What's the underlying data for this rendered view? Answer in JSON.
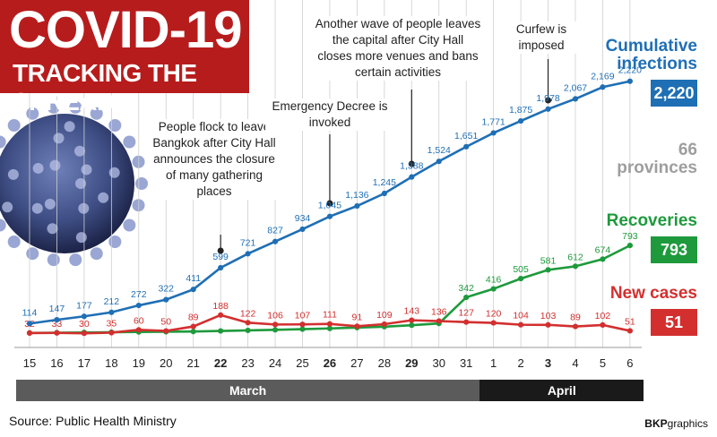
{
  "title": {
    "main": "COVID-19",
    "sub": "TRACKING THE SPREAD"
  },
  "chart_data": {
    "type": "line",
    "categories": [
      "15",
      "16",
      "17",
      "18",
      "19",
      "20",
      "21",
      "22",
      "23",
      "24",
      "25",
      "26",
      "27",
      "28",
      "29",
      "30",
      "31",
      "1",
      "2",
      "3",
      "4",
      "5",
      "6"
    ],
    "bold_categories": [
      "22",
      "26",
      "29",
      "3"
    ],
    "months": [
      {
        "name": "March",
        "first": "15",
        "last": "31",
        "color": "#5b5b5b"
      },
      {
        "name": "April",
        "first": "1",
        "last": "6",
        "color": "#1a1a1a"
      }
    ],
    "series": [
      {
        "name": "Cumulative infections",
        "color": "#1f6fb5",
        "values": [
          114,
          147,
          177,
          212,
          272,
          322,
          411,
          599,
          721,
          827,
          934,
          1045,
          1136,
          1245,
          1388,
          1524,
          1651,
          1771,
          1875,
          1978,
          2067,
          2169,
          2220
        ]
      },
      {
        "name": "Recoveries",
        "color": "#1e9a3c",
        "values": [
          33,
          35,
          37,
          39,
          41,
          43,
          45,
          50,
          55,
          60,
          66,
          72,
          79,
          87,
          100,
          115,
          342,
          416,
          505,
          581,
          612,
          674,
          793
        ]
      },
      {
        "name": "New cases",
        "color": "#d32f2f",
        "values": [
          32,
          33,
          30,
          35,
          60,
          50,
          89,
          188,
          122,
          106,
          107,
          111,
          91,
          109,
          143,
          136,
          127,
          120,
          104,
          103,
          89,
          102,
          51
        ]
      }
    ],
    "labeled": {
      "Recoveries": [
        "342",
        "416",
        "505",
        "581",
        "612",
        "674",
        "793"
      ]
    },
    "ylim": [
      0,
      2300
    ],
    "grid": "vertical"
  },
  "annotations": [
    {
      "text": "People flock to leave Bangkok after City Hall announces the closure of many gathering places",
      "day": "22"
    },
    {
      "text": "Emergency Decree is invoked",
      "day": "26"
    },
    {
      "text": "Another wave of people leaves the capital after City Hall closes more venues and bans certain activities",
      "day": "29"
    },
    {
      "text": "Curfew is imposed",
      "day": "3"
    }
  ],
  "legend": {
    "cumulative": {
      "label": "Cumulative infections",
      "value": "2,220",
      "color": "#1f6fb5"
    },
    "provinces": {
      "label": "66 provinces",
      "color": "#9e9e9e"
    },
    "recoveries": {
      "label": "Recoveries",
      "value": "793",
      "color": "#1e9a3c"
    },
    "new_cases": {
      "label": "New cases",
      "value": "51",
      "color": "#d32f2f"
    }
  },
  "source": "Source: Public Health Ministry",
  "credit": {
    "bold": "BKP",
    "rest": "graphics"
  }
}
